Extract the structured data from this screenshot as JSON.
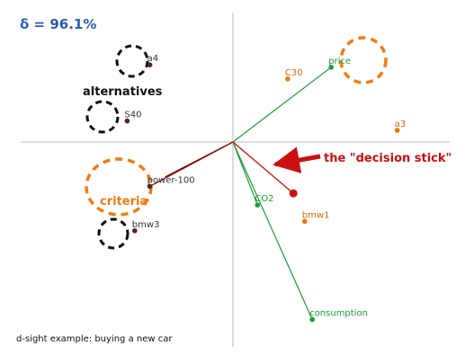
{
  "header": {
    "delta_label": "δ = 96.1%"
  },
  "footer": {
    "caption": "d-sight example: buying a new car"
  },
  "annotations": {
    "alternatives": "alternatives",
    "criteria": "criteria",
    "decision_stick": "the \"decision stick\""
  },
  "colors": {
    "alternative_points": "#e07b00",
    "alternative_labels": "#d06c00",
    "profile_points": "#5a1d3b",
    "criteria_lines": "#1e9b38",
    "criteria_dark_lines": "#8b0000",
    "decision_stick": "#cc1010",
    "highlight_orange": "#f07c10",
    "highlight_black": "#111111",
    "delta_text": "#2a5db0",
    "axes": "#bbbbbb"
  },
  "chart_data": {
    "type": "scatter",
    "title": "",
    "xlabel": "",
    "ylabel": "",
    "xlim": [
      -1.0,
      1.0
    ],
    "ylim": [
      -0.88,
      0.55
    ],
    "grid": false,
    "points": [
      {
        "label": "a4",
        "x": -0.44,
        "y": 0.33,
        "group": "alternative-black"
      },
      {
        "label": "S40",
        "x": -0.56,
        "y": 0.09,
        "group": "alternative-black"
      },
      {
        "label": "power-100",
        "x": -0.44,
        "y": -0.19,
        "group": "criterion-dark"
      },
      {
        "label": "bmw3",
        "x": -0.52,
        "y": -0.38,
        "group": "alternative-black"
      },
      {
        "label": "C30",
        "x": 0.29,
        "y": 0.27,
        "group": "alternative-orange"
      },
      {
        "label": "a3",
        "x": 0.87,
        "y": 0.05,
        "group": "alternative-orange"
      },
      {
        "label": "bmw1",
        "x": 0.38,
        "y": -0.34,
        "group": "alternative-orange"
      },
      {
        "label": "price",
        "x": 0.52,
        "y": 0.32,
        "group": "criterion-green"
      },
      {
        "label": "CO2",
        "x": 0.13,
        "y": -0.27,
        "group": "criterion-green"
      },
      {
        "label": "consumption",
        "x": 0.42,
        "y": -0.76,
        "group": "criterion-green"
      }
    ],
    "vectors": [
      {
        "to": "price",
        "x": 0.52,
        "y": 0.32,
        "color": "green"
      },
      {
        "to": "CO2",
        "x": 0.13,
        "y": -0.27,
        "color": "green"
      },
      {
        "to": "consumption",
        "x": 0.42,
        "y": -0.76,
        "color": "green"
      },
      {
        "to": "power-100",
        "x": -0.44,
        "y": -0.19,
        "color": "dark-red"
      },
      {
        "to": "power-100-second",
        "x": -0.36,
        "y": -0.15,
        "color": "dark-red"
      }
    ],
    "decision_stick": {
      "x": 0.32,
      "y": -0.22
    }
  }
}
